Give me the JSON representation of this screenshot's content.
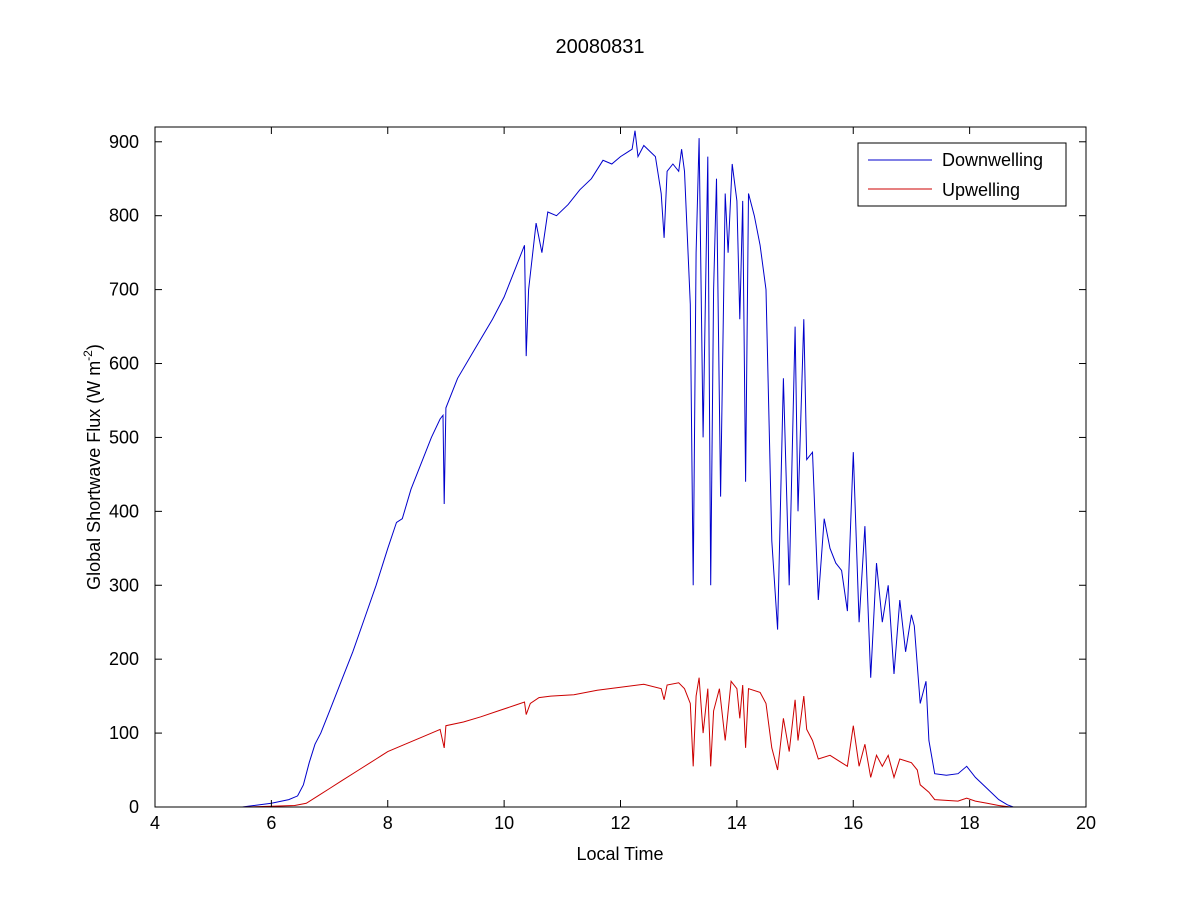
{
  "chart_data": {
    "type": "line",
    "title": "20080831",
    "xlabel": "Local Time",
    "ylabel": "Global Shortwave Flux (W m",
    "ylabel_sup": "-2",
    "ylabel_tail": ")",
    "xlim": [
      4,
      20
    ],
    "ylim": [
      0,
      920
    ],
    "xticks": [
      4,
      6,
      8,
      10,
      12,
      14,
      16,
      18,
      20
    ],
    "yticks": [
      0,
      100,
      200,
      300,
      400,
      500,
      600,
      700,
      800,
      900
    ],
    "grid": false,
    "legend_position": "top-right",
    "series": [
      {
        "name": "Downwelling",
        "color": "#0000cc",
        "points": [
          [
            4.3,
            0
          ],
          [
            5.1,
            0
          ],
          [
            5.5,
            0
          ],
          [
            5.7,
            2
          ],
          [
            6.0,
            5
          ],
          [
            6.3,
            10
          ],
          [
            6.45,
            15
          ],
          [
            6.55,
            30
          ],
          [
            6.65,
            60
          ],
          [
            6.75,
            85
          ],
          [
            6.85,
            100
          ],
          [
            7.0,
            130
          ],
          [
            7.2,
            170
          ],
          [
            7.4,
            210
          ],
          [
            7.6,
            255
          ],
          [
            7.8,
            300
          ],
          [
            8.0,
            350
          ],
          [
            8.15,
            385
          ],
          [
            8.25,
            390
          ],
          [
            8.4,
            430
          ],
          [
            8.6,
            470
          ],
          [
            8.75,
            500
          ],
          [
            8.9,
            525
          ],
          [
            8.95,
            530
          ],
          [
            8.97,
            410
          ],
          [
            9.0,
            540
          ],
          [
            9.2,
            580
          ],
          [
            9.5,
            620
          ],
          [
            9.8,
            660
          ],
          [
            10.0,
            690
          ],
          [
            10.2,
            730
          ],
          [
            10.35,
            760
          ],
          [
            10.38,
            610
          ],
          [
            10.42,
            700
          ],
          [
            10.55,
            790
          ],
          [
            10.65,
            750
          ],
          [
            10.75,
            805
          ],
          [
            10.9,
            800
          ],
          [
            11.1,
            815
          ],
          [
            11.3,
            835
          ],
          [
            11.5,
            850
          ],
          [
            11.7,
            875
          ],
          [
            11.85,
            870
          ],
          [
            12.0,
            880
          ],
          [
            12.1,
            885
          ],
          [
            12.2,
            890
          ],
          [
            12.25,
            915
          ],
          [
            12.3,
            880
          ],
          [
            12.4,
            895
          ],
          [
            12.6,
            880
          ],
          [
            12.7,
            830
          ],
          [
            12.75,
            770
          ],
          [
            12.8,
            860
          ],
          [
            12.9,
            870
          ],
          [
            13.0,
            860
          ],
          [
            13.05,
            890
          ],
          [
            13.1,
            860
          ],
          [
            13.2,
            680
          ],
          [
            13.25,
            300
          ],
          [
            13.3,
            750
          ],
          [
            13.35,
            905
          ],
          [
            13.42,
            500
          ],
          [
            13.5,
            880
          ],
          [
            13.55,
            300
          ],
          [
            13.6,
            700
          ],
          [
            13.65,
            850
          ],
          [
            13.72,
            420
          ],
          [
            13.8,
            830
          ],
          [
            13.85,
            750
          ],
          [
            13.92,
            870
          ],
          [
            14.0,
            820
          ],
          [
            14.05,
            660
          ],
          [
            14.1,
            820
          ],
          [
            14.15,
            440
          ],
          [
            14.2,
            830
          ],
          [
            14.3,
            800
          ],
          [
            14.4,
            760
          ],
          [
            14.5,
            700
          ],
          [
            14.6,
            360
          ],
          [
            14.7,
            240
          ],
          [
            14.8,
            580
          ],
          [
            14.9,
            300
          ],
          [
            15.0,
            650
          ],
          [
            15.05,
            400
          ],
          [
            15.15,
            660
          ],
          [
            15.2,
            470
          ],
          [
            15.3,
            480
          ],
          [
            15.4,
            280
          ],
          [
            15.5,
            390
          ],
          [
            15.6,
            350
          ],
          [
            15.7,
            330
          ],
          [
            15.8,
            320
          ],
          [
            15.9,
            265
          ],
          [
            16.0,
            480
          ],
          [
            16.1,
            250
          ],
          [
            16.2,
            380
          ],
          [
            16.3,
            175
          ],
          [
            16.4,
            330
          ],
          [
            16.5,
            250
          ],
          [
            16.6,
            300
          ],
          [
            16.7,
            180
          ],
          [
            16.8,
            280
          ],
          [
            16.9,
            210
          ],
          [
            17.0,
            260
          ],
          [
            17.05,
            245
          ],
          [
            17.15,
            140
          ],
          [
            17.25,
            170
          ],
          [
            17.3,
            90
          ],
          [
            17.4,
            45
          ],
          [
            17.6,
            43
          ],
          [
            17.8,
            45
          ],
          [
            17.95,
            55
          ],
          [
            18.1,
            40
          ],
          [
            18.3,
            25
          ],
          [
            18.5,
            10
          ],
          [
            18.65,
            3
          ],
          [
            18.75,
            0
          ]
        ]
      },
      {
        "name": "Upwelling",
        "color": "#cc0000",
        "points": [
          [
            5.1,
            0
          ],
          [
            5.5,
            0
          ],
          [
            6.0,
            1
          ],
          [
            6.4,
            2
          ],
          [
            6.6,
            5
          ],
          [
            6.8,
            15
          ],
          [
            7.0,
            25
          ],
          [
            7.2,
            35
          ],
          [
            7.5,
            50
          ],
          [
            7.8,
            65
          ],
          [
            8.0,
            75
          ],
          [
            8.3,
            85
          ],
          [
            8.6,
            95
          ],
          [
            8.9,
            105
          ],
          [
            8.97,
            80
          ],
          [
            9.0,
            110
          ],
          [
            9.3,
            115
          ],
          [
            9.6,
            122
          ],
          [
            9.9,
            130
          ],
          [
            10.2,
            138
          ],
          [
            10.35,
            142
          ],
          [
            10.38,
            125
          ],
          [
            10.45,
            140
          ],
          [
            10.6,
            148
          ],
          [
            10.8,
            150
          ],
          [
            11.2,
            152
          ],
          [
            11.6,
            158
          ],
          [
            12.0,
            162
          ],
          [
            12.4,
            166
          ],
          [
            12.7,
            160
          ],
          [
            12.75,
            145
          ],
          [
            12.8,
            165
          ],
          [
            13.0,
            168
          ],
          [
            13.1,
            160
          ],
          [
            13.2,
            140
          ],
          [
            13.25,
            55
          ],
          [
            13.3,
            150
          ],
          [
            13.35,
            175
          ],
          [
            13.42,
            100
          ],
          [
            13.5,
            160
          ],
          [
            13.55,
            55
          ],
          [
            13.6,
            130
          ],
          [
            13.7,
            160
          ],
          [
            13.8,
            90
          ],
          [
            13.9,
            170
          ],
          [
            14.0,
            160
          ],
          [
            14.05,
            120
          ],
          [
            14.1,
            165
          ],
          [
            14.15,
            80
          ],
          [
            14.2,
            160
          ],
          [
            14.4,
            155
          ],
          [
            14.5,
            140
          ],
          [
            14.6,
            80
          ],
          [
            14.7,
            50
          ],
          [
            14.8,
            120
          ],
          [
            14.9,
            75
          ],
          [
            15.0,
            145
          ],
          [
            15.05,
            90
          ],
          [
            15.15,
            150
          ],
          [
            15.2,
            105
          ],
          [
            15.3,
            90
          ],
          [
            15.4,
            65
          ],
          [
            15.6,
            70
          ],
          [
            15.8,
            60
          ],
          [
            15.9,
            55
          ],
          [
            16.0,
            110
          ],
          [
            16.1,
            55
          ],
          [
            16.2,
            85
          ],
          [
            16.3,
            40
          ],
          [
            16.4,
            70
          ],
          [
            16.5,
            55
          ],
          [
            16.6,
            70
          ],
          [
            16.7,
            40
          ],
          [
            16.8,
            65
          ],
          [
            17.0,
            60
          ],
          [
            17.1,
            50
          ],
          [
            17.15,
            30
          ],
          [
            17.3,
            20
          ],
          [
            17.4,
            10
          ],
          [
            17.8,
            8
          ],
          [
            17.95,
            12
          ],
          [
            18.1,
            8
          ],
          [
            18.3,
            5
          ],
          [
            18.5,
            2
          ],
          [
            18.7,
            0
          ]
        ]
      }
    ]
  }
}
